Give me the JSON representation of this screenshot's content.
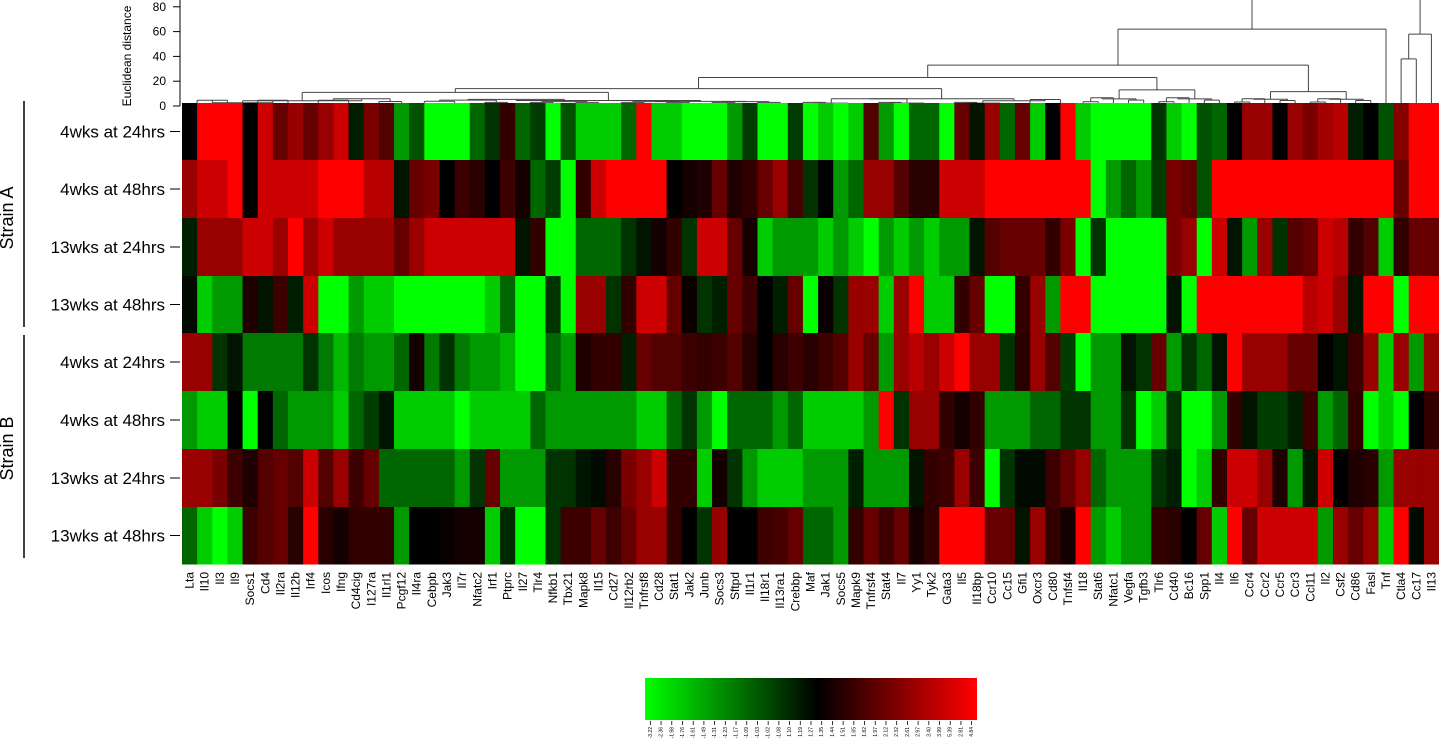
{
  "chart_data": {
    "type": "heatmap",
    "dendrogram": {
      "ylabel": "Euclidean distance",
      "ticks": [
        0,
        20,
        40,
        60,
        80
      ],
      "ylim": [
        0,
        100
      ]
    },
    "groups": [
      {
        "label": "Strain A",
        "rows": [
          "4wks at 24hrs",
          "4wks at 48hrs",
          "13wks at 24hrs",
          "13wks at 48hrs"
        ]
      },
      {
        "label": "Strain B",
        "rows": [
          "4wks at 24hrs",
          "4wks at 48hrs",
          "13wks at 24hrs",
          "13wks at 48hrs"
        ]
      }
    ],
    "columns": [
      "Lta",
      "Il10",
      "Il3",
      "Il9",
      "Socs1",
      "Cd4",
      "Il2ra",
      "Il12b",
      "Irf4",
      "Icos",
      "Ifng",
      "Cd4cig",
      "I127ra",
      "Il1rl1",
      "Pcgf12",
      "Il4ra",
      "Cebpb",
      "Jak3",
      "Il7r",
      "Nfatc2",
      "Irf1",
      "Ptprc",
      "Il27",
      "Tlr4",
      "Nfkb1",
      "Tbx21",
      "Mapk8",
      "Il15",
      "Cd27",
      "Il12rb2",
      "Tnfrsf8",
      "Cd28",
      "Stat1",
      "Jak2",
      "Junb",
      "Socs3",
      "Sftpd",
      "Il1r1",
      "Il18r1",
      "Il13ra1",
      "Crebbp",
      "Maf",
      "Jak1",
      "Socs5",
      "Mapk9",
      "Tnfrsf4",
      "Stat4",
      "Il7",
      "Yy1",
      "Tyk2",
      "Gata3",
      "Il5",
      "Il18bp",
      "Ccr10",
      "Cc15",
      "Gfi1",
      "Oxcr3",
      "Cd80",
      "Tnfsf4",
      "Il18",
      "Stat6",
      "Nfatc1",
      "Vegfa",
      "Tgfb3",
      "Tlr6",
      "Cd40",
      "Bc16",
      "Spp1",
      "Il4",
      "Il6",
      "Ccr4",
      "Ccr2",
      "Ccr5",
      "Ccr3",
      "Ccl11",
      "Il2",
      "Csf2",
      "Cd86",
      "Fasl",
      "Tnf",
      "Ctla4",
      "Cc17",
      "Il13"
    ],
    "values": [
      [
        0.0,
        2.5,
        2.5,
        2.5,
        0.0,
        2.0,
        1.0,
        1.5,
        1.0,
        1.5,
        2.0,
        -0.3,
        1.2,
        0.8,
        -1.5,
        -0.8,
        -2.5,
        -2.5,
        -2.5,
        -1.0,
        -0.5,
        0.5,
        -1.0,
        -0.6,
        -2.5,
        -0.8,
        -2.0,
        -2.0,
        -2.0,
        -1.0,
        2.5,
        -2.0,
        -2.0,
        -2.5,
        -2.5,
        -2.5,
        -1.5,
        -0.6,
        -2.5,
        -2.5,
        -0.6,
        -2.5,
        -2.0,
        -2.5,
        -2.0,
        0.8,
        -1.5,
        -2.5,
        -1.0,
        -1.0,
        -2.5,
        1.0,
        -0.2,
        1.5,
        -1.0,
        1.0,
        -2.0,
        0.0,
        2.5,
        -2.0,
        -2.5,
        -2.5,
        -2.5,
        -2.5,
        -0.5,
        -2.0,
        -2.5,
        -0.8,
        -1.0,
        0.0,
        1.5,
        1.5,
        0.0,
        1.5,
        1.2,
        1.6,
        1.8,
        -0.3,
        0.0,
        -0.8,
        1.3,
        2.5,
        2.5
      ],
      [
        1.5,
        2.0,
        2.0,
        2.5,
        0.0,
        2.0,
        2.0,
        2.0,
        2.0,
        2.5,
        2.5,
        2.5,
        1.8,
        1.8,
        -0.2,
        1.0,
        1.2,
        0.0,
        0.6,
        0.4,
        0.0,
        0.6,
        0.2,
        -1.0,
        -0.6,
        -2.5,
        0.5,
        2.0,
        2.5,
        2.5,
        2.5,
        2.5,
        0.0,
        0.2,
        0.3,
        1.0,
        0.3,
        0.5,
        1.0,
        1.5,
        0.7,
        -0.5,
        0.0,
        -1.5,
        -1.0,
        1.5,
        1.5,
        0.8,
        0.4,
        0.4,
        2.0,
        2.0,
        2.0,
        2.5,
        2.5,
        2.5,
        2.5,
        2.5,
        2.5,
        2.5,
        -2.5,
        -1.5,
        -1.0,
        -1.5,
        -0.6,
        1.2,
        1.0,
        -0.8,
        2.5,
        2.5,
        2.5,
        2.5,
        2.5,
        2.5,
        2.5,
        2.5,
        2.5,
        2.5,
        2.5,
        2.5,
        1.0,
        2.5,
        2.5
      ],
      [
        -0.3,
        1.5,
        1.5,
        1.5,
        2.0,
        2.0,
        1.5,
        2.5,
        1.5,
        2.0,
        1.5,
        1.5,
        1.5,
        1.5,
        1.0,
        1.5,
        2.0,
        2.0,
        2.0,
        2.0,
        2.0,
        2.0,
        -0.2,
        0.5,
        -2.5,
        -2.5,
        -1.0,
        -1.0,
        -1.0,
        -0.5,
        -0.2,
        0.2,
        0.5,
        -0.5,
        2.0,
        2.0,
        1.0,
        0.2,
        -2.0,
        -1.5,
        -1.5,
        -1.5,
        -2.0,
        -1.5,
        -2.0,
        -2.5,
        -1.5,
        -2.0,
        -1.5,
        -2.0,
        -1.5,
        -1.5,
        -0.2,
        0.8,
        1.0,
        1.0,
        1.0,
        0.5,
        1.2,
        -2.5,
        -0.5,
        -2.5,
        -2.5,
        -2.5,
        -2.5,
        1.2,
        1.5,
        -2.5,
        2.0,
        -0.2,
        -1.5,
        1.5,
        -0.5,
        0.8,
        1.0,
        2.0,
        1.8,
        0.5,
        0.8,
        -2.0,
        0.5,
        1.0,
        1.0
      ],
      [
        -0.1,
        -2.0,
        -1.5,
        -1.5,
        0.3,
        -0.2,
        0.6,
        -0.3,
        2.0,
        -2.5,
        -2.5,
        -1.5,
        -2.0,
        -2.0,
        -2.5,
        -2.5,
        -2.5,
        -2.5,
        -2.5,
        -2.5,
        -2.0,
        -1.0,
        -2.5,
        -2.5,
        -0.5,
        -2.5,
        1.5,
        1.5,
        -0.5,
        0.5,
        2.0,
        2.0,
        1.0,
        0.1,
        -0.5,
        -0.3,
        1.0,
        0.6,
        0.0,
        -0.3,
        1.0,
        -2.5,
        0.1,
        -0.5,
        1.5,
        1.5,
        -2.0,
        1.5,
        2.5,
        -2.0,
        -2.0,
        0.5,
        1.0,
        -2.5,
        -2.5,
        0.5,
        1.5,
        -1.5,
        2.5,
        2.5,
        -2.5,
        -2.5,
        -2.5,
        -2.5,
        -2.5,
        -0.2,
        -2.5,
        2.5,
        2.5,
        2.5,
        2.5,
        2.5,
        2.5,
        2.5,
        1.8,
        2.0,
        1.5,
        -0.2,
        2.5,
        2.5,
        -2.5,
        2.5,
        2.5
      ],
      [
        1.5,
        1.5,
        -0.5,
        -0.2,
        -1.2,
        -1.2,
        -1.2,
        -1.2,
        -0.5,
        -1.2,
        -1.8,
        -1.2,
        -1.5,
        -1.5,
        -1.0,
        0.2,
        -1.2,
        -0.5,
        -1.2,
        -1.5,
        -1.5,
        -1.8,
        -2.5,
        -2.5,
        -1.0,
        -1.5,
        0.3,
        0.5,
        0.5,
        -0.3,
        1.0,
        0.8,
        0.8,
        0.6,
        0.5,
        0.6,
        0.8,
        0.4,
        0.0,
        0.4,
        0.6,
        0.4,
        0.6,
        0.8,
        1.5,
        1.0,
        -1.5,
        1.5,
        1.8,
        1.5,
        2.0,
        2.5,
        1.5,
        1.5,
        -0.5,
        0.4,
        1.5,
        0.8,
        -0.6,
        -2.5,
        -1.5,
        -1.5,
        -0.2,
        -0.5,
        1.0,
        -1.5,
        -0.5,
        -1.0,
        -0.2,
        2.5,
        1.5,
        1.5,
        1.5,
        1.0,
        1.0,
        0.0,
        -0.2,
        0.6,
        1.5,
        -2.0,
        1.5,
        -1.5,
        1.5
      ],
      [
        -1.5,
        -2.0,
        -2.0,
        0.0,
        -2.5,
        0.0,
        -1.0,
        -1.5,
        -1.5,
        -1.5,
        -2.0,
        -1.0,
        -0.6,
        -0.2,
        -2.0,
        -2.0,
        -2.0,
        -2.0,
        -2.5,
        -2.0,
        -2.0,
        -2.0,
        -2.0,
        -1.0,
        -1.5,
        -1.5,
        -1.5,
        -1.5,
        -1.5,
        -1.5,
        -2.0,
        -2.0,
        -1.0,
        -0.5,
        -1.5,
        -2.5,
        -1.0,
        -1.0,
        -1.0,
        -1.5,
        -1.0,
        -2.0,
        -2.0,
        -2.0,
        -2.0,
        -1.5,
        2.5,
        -0.5,
        1.5,
        1.5,
        0.5,
        0.2,
        0.5,
        -1.5,
        -1.5,
        -1.5,
        -1.0,
        -1.0,
        -0.5,
        -0.5,
        -1.5,
        -1.5,
        -0.5,
        -2.5,
        -2.0,
        -0.5,
        -2.5,
        -2.5,
        -1.5,
        0.5,
        -0.2,
        -0.6,
        -0.6,
        -0.3,
        0.6,
        -1.5,
        -1.0,
        0.5,
        -2.5,
        -2.0,
        -2.5,
        0.0,
        0.5
      ],
      [
        1.5,
        1.5,
        1.2,
        0.6,
        0.3,
        0.8,
        1.0,
        0.8,
        2.0,
        0.8,
        1.5,
        0.6,
        1.0,
        -1.0,
        -1.0,
        -1.0,
        -1.0,
        -1.0,
        -1.5,
        -0.5,
        1.0,
        -1.5,
        -1.5,
        -1.5,
        -0.5,
        -0.5,
        -0.2,
        -0.1,
        0.4,
        1.2,
        1.5,
        2.0,
        0.5,
        0.5,
        -2.0,
        0.2,
        -0.5,
        -1.5,
        -2.0,
        -2.0,
        -2.0,
        -1.5,
        -1.5,
        -1.5,
        -0.3,
        -1.5,
        -1.5,
        -1.5,
        -0.2,
        0.5,
        0.6,
        1.5,
        0.6,
        -2.5,
        -0.5,
        -0.1,
        -0.1,
        0.6,
        1.0,
        1.5,
        -1.0,
        -1.5,
        -1.5,
        -1.5,
        -0.5,
        -0.3,
        -2.5,
        -2.0,
        0.5,
        2.0,
        2.0,
        1.5,
        0.3,
        -1.5,
        -0.2,
        2.0,
        0.0,
        0.3,
        0.4,
        -1.5,
        1.5,
        1.5,
        1.5
      ],
      [
        -1.0,
        -2.0,
        -2.5,
        -2.0,
        0.6,
        0.8,
        1.0,
        0.4,
        2.5,
        0.4,
        0.2,
        0.5,
        0.5,
        0.5,
        -1.5,
        0.0,
        0.0,
        0.1,
        0.2,
        0.2,
        -2.0,
        -0.4,
        -2.5,
        -2.5,
        -0.5,
        0.6,
        0.6,
        1.0,
        0.6,
        1.0,
        1.5,
        1.5,
        0.5,
        0.0,
        -0.5,
        1.5,
        0.0,
        0.0,
        0.6,
        0.7,
        1.0,
        -1.0,
        -1.0,
        -1.5,
        0.5,
        1.0,
        0.6,
        1.0,
        0.2,
        0.5,
        2.5,
        2.5,
        2.5,
        1.0,
        1.0,
        -0.2,
        1.5,
        0.5,
        0.2,
        2.5,
        -1.5,
        -2.0,
        -1.5,
        -1.5,
        0.5,
        0.4,
        0.0,
        1.0,
        -2.0,
        2.5,
        1.0,
        2.0,
        2.0,
        2.0,
        2.0,
        -1.5,
        1.5,
        1.0,
        1.5,
        -2.0,
        2.5,
        -0.1,
        1.5
      ]
    ],
    "color_scale": {
      "low": "#00ff00",
      "mid": "#000000",
      "high": "#ff0000",
      "ticks": [
        "-3.22",
        "-2.36",
        "-1.98",
        "-1.76",
        "-1.61",
        "-1.49",
        "-1.31",
        "-1.23",
        "-1.17",
        "-1.09",
        "-1.03",
        "-1.02",
        "-1.08",
        "1.10",
        "1.19",
        "1.27",
        "1.35",
        "1.44",
        "1.51",
        "1.65",
        "1.82",
        "1.97",
        "2.12",
        "2.32",
        "2.61",
        "2.97",
        "3.40",
        "3.99",
        "5.39",
        "2.81",
        "4.84"
      ]
    }
  }
}
